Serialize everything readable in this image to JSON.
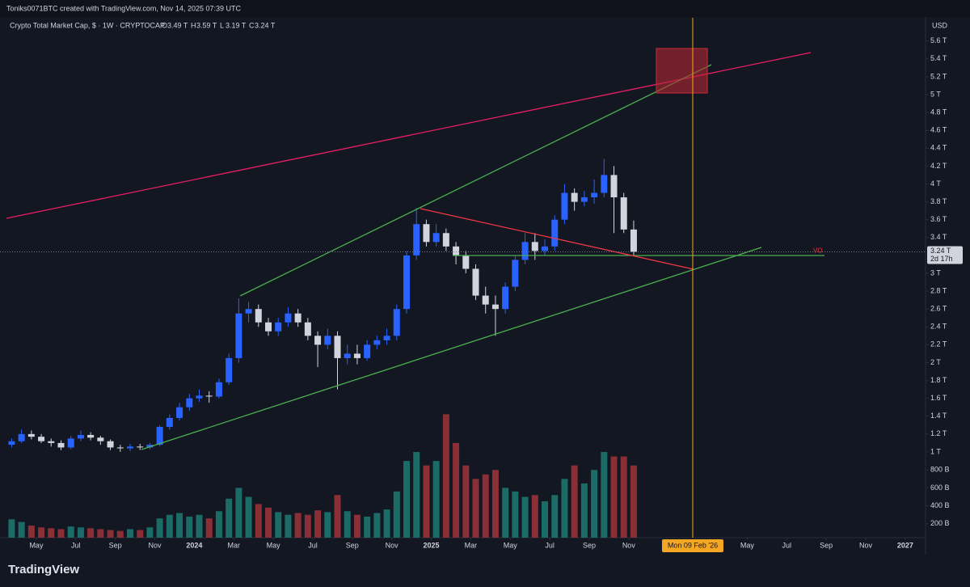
{
  "header": "Toniks0071BTC created with TradingView.com, Nov 14, 2025 07:39 UTC",
  "chart_data": {
    "type": "candlestick",
    "title": "Crypto Total Market Cap, $ · 1W · CRYPTOCAP",
    "ohlc_legend": [
      {
        "key": "O",
        "text": "3.49 T"
      },
      {
        "key": "H",
        "text": "3.59 T"
      },
      {
        "key": "L",
        "text": "3.19 T"
      },
      {
        "key": "C",
        "text": "3.24 T"
      }
    ],
    "currency": "USD",
    "x": [
      -0.25,
      0.25,
      0.75,
      1.25,
      1.75,
      2.25,
      2.75,
      3.25,
      3.75,
      4.25,
      4.75,
      5.25,
      5.75,
      6.25,
      6.75,
      7.25,
      7.75,
      8.25,
      8.75,
      9.25,
      9.75,
      10.25,
      10.75,
      11.25,
      11.75,
      12.25,
      12.75,
      13.25,
      13.75,
      14.25,
      14.75,
      15.25,
      15.75,
      16.25,
      16.75,
      17.25,
      17.75,
      18.25,
      18.75,
      19.25,
      19.75,
      20.25,
      20.75,
      21.25,
      21.75,
      22.25,
      22.75,
      23.25,
      23.75,
      24.25,
      24.75,
      25.25,
      25.75,
      26.25,
      26.75,
      27.25,
      27.75,
      28.25,
      28.75,
      29.25,
      29.75,
      30.25,
      30.75,
      31.25
    ],
    "open": [
      1.08,
      1.12,
      1.2,
      1.17,
      1.12,
      1.1,
      1.05,
      1.15,
      1.19,
      1.16,
      1.12,
      1.05,
      1.04,
      1.06,
      1.05,
      1.08,
      1.28,
      1.38,
      1.5,
      1.6,
      1.63,
      1.62,
      1.78,
      2.05,
      2.55,
      2.6,
      2.45,
      2.35,
      2.45,
      2.55,
      2.45,
      2.3,
      2.2,
      2.3,
      2.05,
      2.1,
      2.05,
      2.2,
      2.25,
      2.3,
      2.6,
      3.2,
      3.55,
      3.35,
      3.45,
      3.3,
      3.2,
      3.05,
      2.75,
      2.65,
      2.6,
      2.85,
      3.15,
      3.35,
      3.25,
      3.3,
      3.6,
      3.9,
      3.8,
      3.85,
      3.9,
      4.1,
      3.85,
      3.49
    ],
    "high": [
      1.15,
      1.25,
      1.24,
      1.2,
      1.15,
      1.13,
      1.18,
      1.24,
      1.22,
      1.18,
      1.14,
      1.08,
      1.09,
      1.09,
      1.1,
      1.3,
      1.42,
      1.55,
      1.65,
      1.7,
      1.68,
      1.82,
      2.1,
      2.72,
      2.68,
      2.65,
      2.5,
      2.5,
      2.62,
      2.6,
      2.5,
      2.35,
      2.38,
      2.35,
      2.2,
      2.2,
      2.25,
      2.3,
      2.38,
      2.65,
      3.25,
      3.73,
      3.6,
      3.55,
      3.5,
      3.35,
      3.25,
      3.1,
      2.85,
      2.75,
      2.9,
      3.2,
      3.45,
      3.45,
      3.38,
      3.65,
      4.0,
      3.95,
      3.92,
      4.05,
      4.28,
      4.2,
      3.9,
      3.59
    ],
    "low": [
      1.05,
      1.1,
      1.14,
      1.1,
      1.06,
      1.02,
      1.03,
      1.12,
      1.13,
      1.08,
      1.02,
      1.0,
      1.01,
      1.02,
      1.03,
      1.06,
      1.25,
      1.35,
      1.46,
      1.56,
      1.55,
      1.6,
      1.75,
      2.0,
      2.45,
      2.4,
      2.3,
      2.3,
      2.4,
      2.4,
      2.25,
      1.95,
      2.15,
      1.7,
      1.98,
      1.98,
      2.02,
      2.15,
      2.2,
      2.25,
      2.55,
      3.15,
      3.3,
      3.3,
      3.25,
      3.1,
      3.0,
      2.7,
      2.55,
      2.3,
      2.55,
      2.8,
      3.1,
      3.15,
      3.2,
      3.25,
      3.55,
      3.7,
      3.75,
      3.78,
      3.85,
      3.45,
      3.45,
      3.19
    ],
    "close": [
      1.12,
      1.2,
      1.17,
      1.12,
      1.1,
      1.05,
      1.15,
      1.19,
      1.16,
      1.12,
      1.05,
      1.04,
      1.06,
      1.05,
      1.08,
      1.28,
      1.38,
      1.5,
      1.6,
      1.63,
      1.62,
      1.78,
      2.05,
      2.55,
      2.6,
      2.45,
      2.35,
      2.45,
      2.55,
      2.45,
      2.3,
      2.2,
      2.3,
      2.05,
      2.1,
      2.05,
      2.2,
      2.25,
      2.3,
      2.6,
      3.2,
      3.55,
      3.35,
      3.45,
      3.3,
      3.2,
      3.05,
      2.75,
      2.65,
      2.6,
      2.85,
      3.15,
      3.35,
      3.25,
      3.3,
      3.6,
      3.9,
      3.8,
      3.85,
      3.9,
      4.1,
      3.85,
      3.49,
      3.24
    ],
    "volume": {
      "axis": "y2",
      "values": [
        250,
        220,
        180,
        160,
        150,
        140,
        170,
        160,
        150,
        140,
        130,
        120,
        140,
        130,
        160,
        260,
        300,
        320,
        280,
        300,
        260,
        340,
        480,
        600,
        500,
        420,
        380,
        330,
        300,
        320,
        300,
        350,
        330,
        520,
        340,
        300,
        280,
        320,
        360,
        560,
        900,
        1000,
        850,
        900,
        1420,
        1100,
        850,
        700,
        750,
        800,
        600,
        560,
        500,
        520,
        450,
        520,
        700,
        850,
        650,
        800,
        1000,
        950,
        950,
        850
      ]
    },
    "up_color": "#2962ff",
    "down_color": "#d1d4dc",
    "volume_up_color": "#1b6b66",
    "volume_down_color": "#8a2f36",
    "xlim": [
      -0.84,
      46.03
    ],
    "xticks": [
      {
        "value": 1,
        "label": "May"
      },
      {
        "value": 3,
        "label": "Jul"
      },
      {
        "value": 5,
        "label": "Sep"
      },
      {
        "value": 7,
        "label": "Nov"
      },
      {
        "value": 9,
        "label": "2024"
      },
      {
        "value": 11,
        "label": "Mar"
      },
      {
        "value": 13,
        "label": "May"
      },
      {
        "value": 15,
        "label": "Jul"
      },
      {
        "value": 17,
        "label": "Sep"
      },
      {
        "value": 19,
        "label": "Nov"
      },
      {
        "value": 21,
        "label": "2025"
      },
      {
        "value": 23,
        "label": "Mar"
      },
      {
        "value": 25,
        "label": "May"
      },
      {
        "value": 27,
        "label": "Jul"
      },
      {
        "value": 29,
        "label": "Sep"
      },
      {
        "value": 31,
        "label": "Nov"
      },
      {
        "value": 37,
        "label": "May"
      },
      {
        "value": 39,
        "label": "Jul"
      },
      {
        "value": 41,
        "label": "Sep"
      },
      {
        "value": 43,
        "label": "Nov"
      },
      {
        "value": 45,
        "label": "2027"
      }
    ],
    "ylim": [
      0.04,
      5.86
    ],
    "yticks": [
      {
        "value": 1,
        "label": "1 T"
      },
      {
        "value": 1.2,
        "label": "1.2 T"
      },
      {
        "value": 1.4,
        "label": "1.4 T"
      },
      {
        "value": 1.6,
        "label": "1.6 T"
      },
      {
        "value": 1.8,
        "label": "1.8 T"
      },
      {
        "value": 2,
        "label": "2 T"
      },
      {
        "value": 2.2,
        "label": "2.2 T"
      },
      {
        "value": 2.4,
        "label": "2.4 T"
      },
      {
        "value": 2.6,
        "label": "2.6 T"
      },
      {
        "value": 2.8,
        "label": "2.8 T"
      },
      {
        "value": 3,
        "label": "3 T"
      },
      {
        "value": 3.4,
        "label": "3.4 T"
      },
      {
        "value": 3.6,
        "label": "3.6 T"
      },
      {
        "value": 3.8,
        "label": "3.8 T"
      },
      {
        "value": 4,
        "label": "4 T"
      },
      {
        "value": 4.2,
        "label": "4.2 T"
      },
      {
        "value": 4.4,
        "label": "4.4 T"
      },
      {
        "value": 4.6,
        "label": "4.6 T"
      },
      {
        "value": 4.8,
        "label": "4.8 T"
      },
      {
        "value": 5,
        "label": "5 T"
      },
      {
        "value": 5.2,
        "label": "5.2 T"
      },
      {
        "value": 5.4,
        "label": "5.4 T"
      },
      {
        "value": 5.6,
        "label": "5.6 T"
      }
    ],
    "y2lim": [
      45,
      5838
    ],
    "y2ticks": [
      {
        "value": 200,
        "label": "200 B"
      },
      {
        "value": 400,
        "label": "400 B"
      },
      {
        "value": 600,
        "label": "600 B"
      },
      {
        "value": 800,
        "label": "800 B"
      }
    ],
    "last_price": {
      "label": "3.24 T",
      "countdown": "2d 17h"
    },
    "annotation": "VO",
    "crosshair": {
      "value": 34.24,
      "label": "Mon 09 Feb '26"
    }
  },
  "footer": {
    "logo": "TradingView"
  }
}
